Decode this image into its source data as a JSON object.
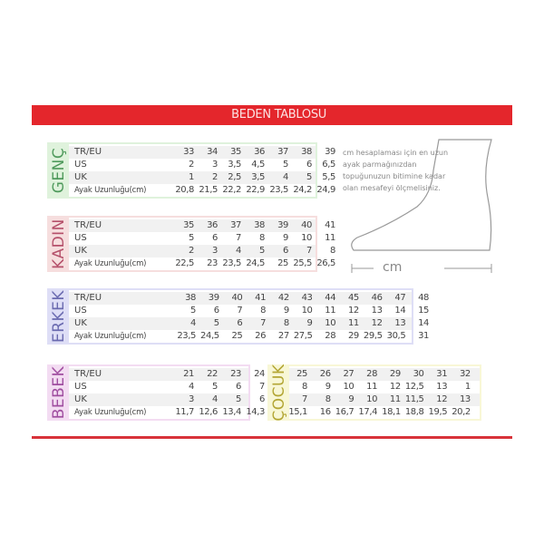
{
  "header": {
    "title": "BEDEN TABLOSU"
  },
  "colors": {
    "header": "#e4262c",
    "genc": "#4f9a5c",
    "kadin": "#b5506a",
    "erkek": "#6a6ab0",
    "bebek": "#a04ea0",
    "cocuk": "#b3a634"
  },
  "row_labels": [
    "TR/EU",
    "US",
    "UK",
    "Ayak Uzunluğu(cm)"
  ],
  "tables": [
    {
      "id": "genc",
      "title": "GENÇ",
      "rows": [
        [
          "33",
          "34",
          "35",
          "36",
          "37",
          "38",
          "39"
        ],
        [
          "2",
          "3",
          "3,5",
          "4,5",
          "5",
          "6",
          "6,5"
        ],
        [
          "1",
          "2",
          "2,5",
          "3,5",
          "4",
          "5",
          "5,5"
        ],
        [
          "20,8",
          "21,5",
          "22,2",
          "22,9",
          "23,5",
          "24,2",
          "24,9"
        ]
      ]
    },
    {
      "id": "kadin",
      "title": "KADIN",
      "rows": [
        [
          "35",
          "36",
          "37",
          "38",
          "39",
          "40",
          "41"
        ],
        [
          "5",
          "6",
          "7",
          "8",
          "9",
          "10",
          "11"
        ],
        [
          "2",
          "3",
          "4",
          "5",
          "6",
          "7",
          "8"
        ],
        [
          "22,5",
          "23",
          "23,5",
          "24,5",
          "25",
          "25,5",
          "26,5"
        ]
      ]
    },
    {
      "id": "erkek",
      "title": "ERKEK",
      "rows": [
        [
          "38",
          "39",
          "40",
          "41",
          "42",
          "43",
          "44",
          "45",
          "46",
          "47",
          "48"
        ],
        [
          "5",
          "6",
          "7",
          "8",
          "9",
          "10",
          "11",
          "12",
          "13",
          "14",
          "15"
        ],
        [
          "4",
          "5",
          "6",
          "7",
          "8",
          "9",
          "10",
          "11",
          "12",
          "13",
          "14"
        ],
        [
          "23,5",
          "24,5",
          "25",
          "26",
          "27",
          "27,5",
          "28",
          "29",
          "29,5",
          "30,5",
          "31"
        ]
      ]
    },
    {
      "id": "bebek",
      "title": "BEBEK",
      "rows": [
        [
          "21",
          "22",
          "23",
          "24"
        ],
        [
          "4",
          "5",
          "6",
          "7"
        ],
        [
          "3",
          "4",
          "5",
          "6"
        ],
        [
          "11,7",
          "12,6",
          "13,4",
          "14,3"
        ]
      ]
    },
    {
      "id": "cocuk",
      "title": "ÇOCUK",
      "rows": [
        [
          "25",
          "26",
          "27",
          "28",
          "29",
          "30",
          "31",
          "32"
        ],
        [
          "8",
          "9",
          "10",
          "11",
          "12",
          "12,5",
          "13",
          "1"
        ],
        [
          "7",
          "8",
          "9",
          "10",
          "11",
          "11,5",
          "12",
          "13"
        ],
        [
          "15,1",
          "16",
          "16,7",
          "17,4",
          "18,1",
          "18,8",
          "19,5",
          "20,2"
        ]
      ]
    }
  ],
  "note": "cm hesaplaması için en uzun ayak parmağınızdan topuğunuzun bitimine kadar olan mesafeyi ölçmelisiniz.",
  "diagram": {
    "unit": "cm"
  }
}
